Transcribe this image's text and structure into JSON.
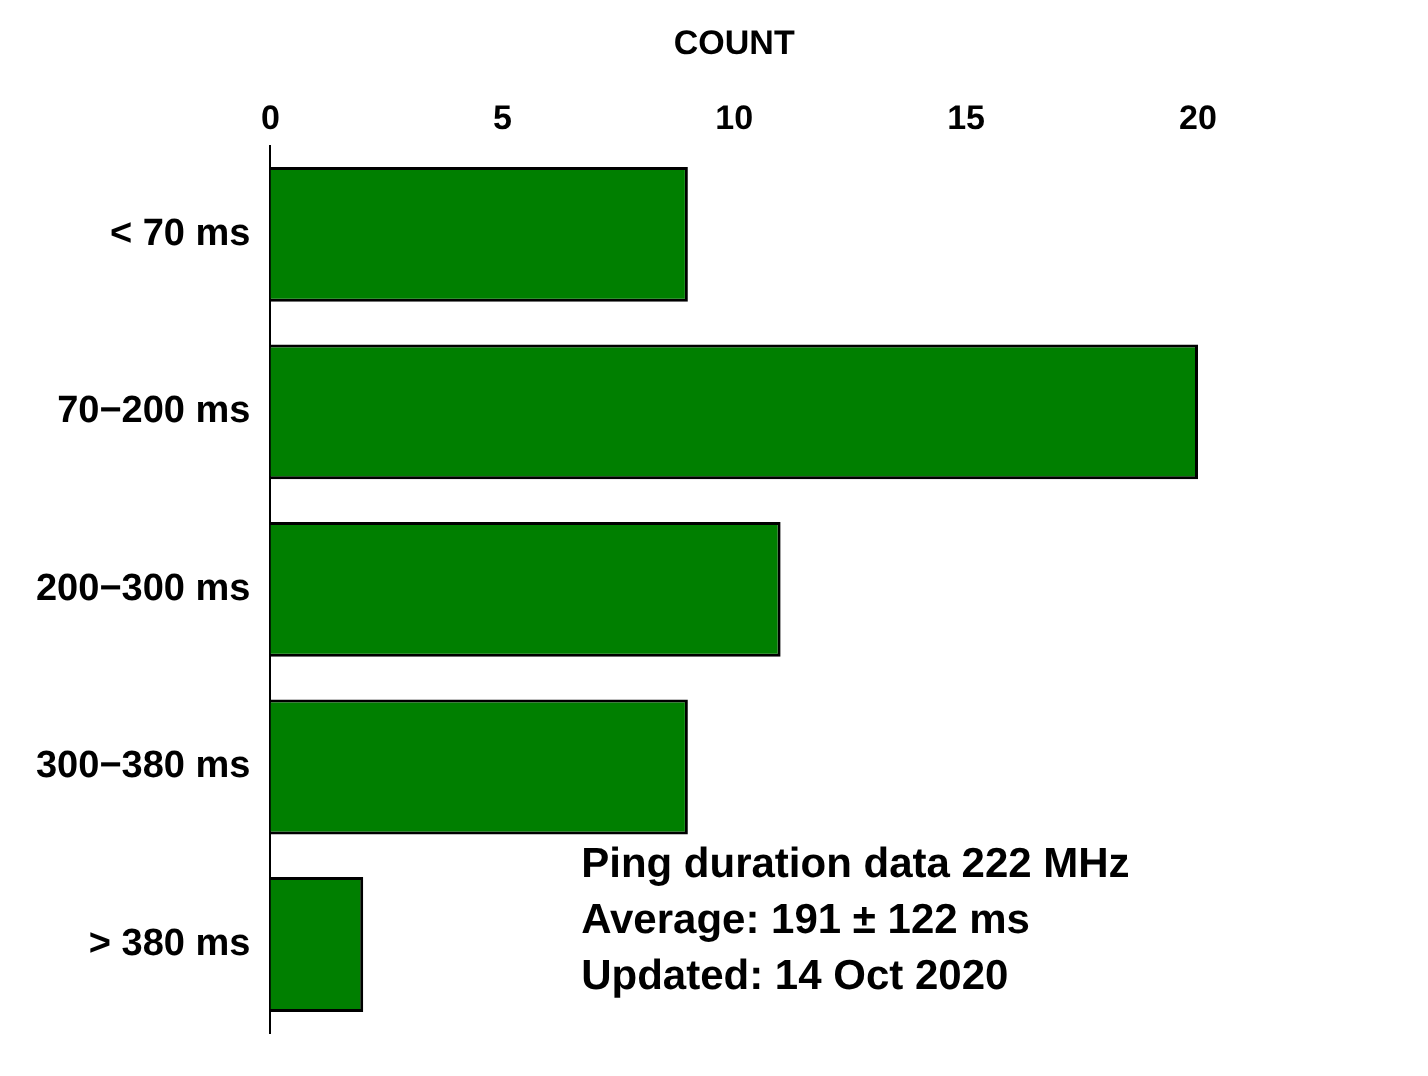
{
  "chart_data": {
    "type": "bar",
    "orientation": "horizontal",
    "xlabel": "COUNT",
    "categories": [
      "< 70 ms",
      "70−200 ms",
      "200−300 ms",
      "300−380 ms",
      "> 380 ms"
    ],
    "values": [
      9,
      20,
      11,
      9,
      2
    ],
    "color": "#007f00",
    "xlim": [
      0,
      20
    ],
    "xticks": [
      0,
      5,
      10,
      15,
      20
    ],
    "grid": false,
    "legend": false,
    "annotations": [
      "Ping duration data 222 MHz",
      "Average: 191 ± 122 ms",
      "Updated: 14 Oct 2020"
    ]
  }
}
